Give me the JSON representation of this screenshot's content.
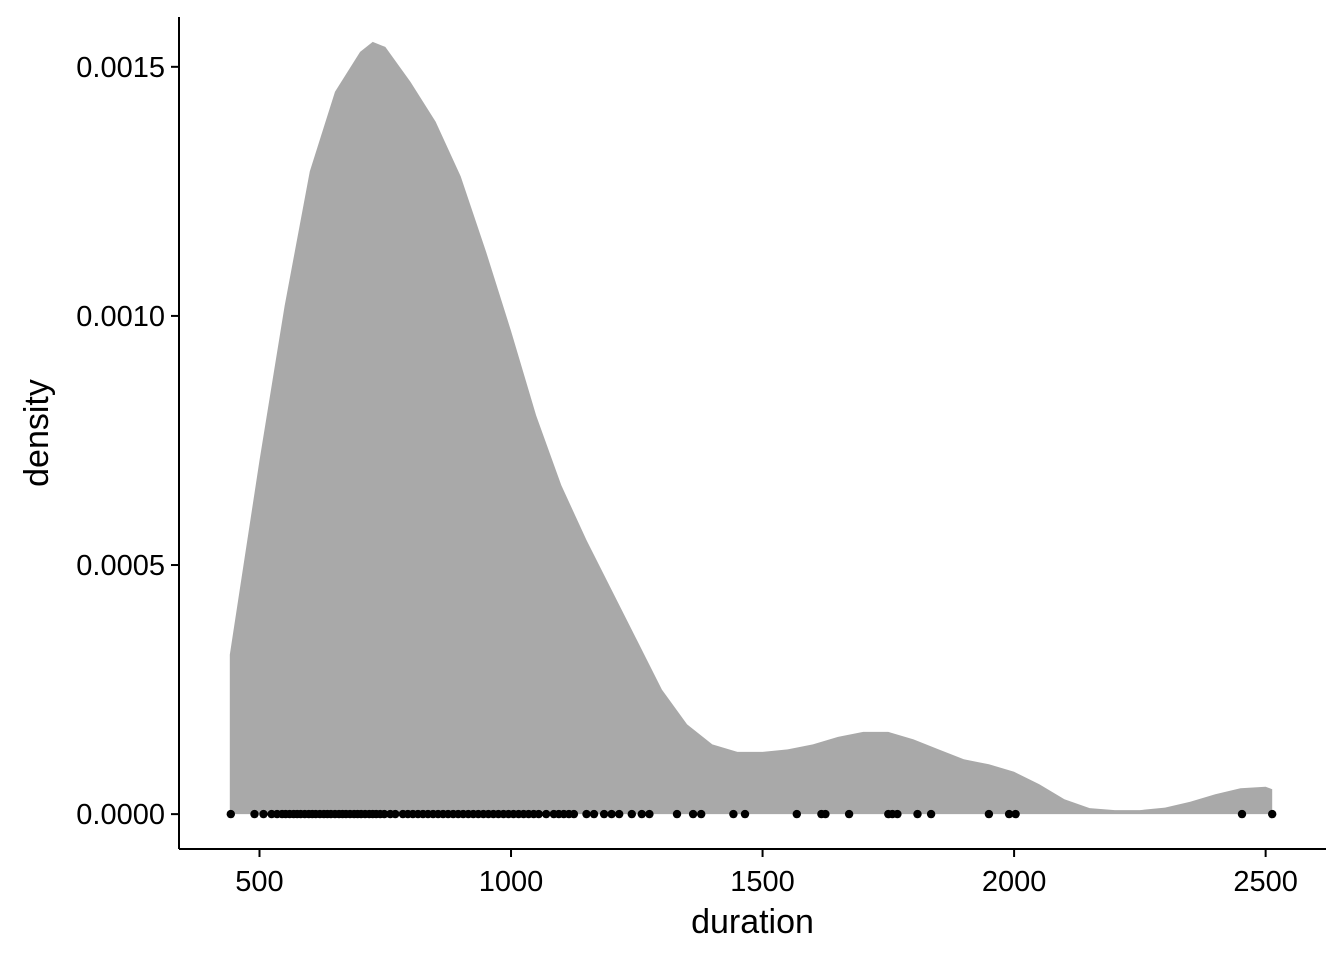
{
  "chart_data": {
    "type": "area",
    "title": "",
    "xlabel": "duration",
    "ylabel": "density",
    "xlim": [
      340,
      2620
    ],
    "ylim": [
      -7e-05,
      0.0016
    ],
    "xticks": [
      {
        "value": 500,
        "label": "500"
      },
      {
        "value": 1000,
        "label": "1000"
      },
      {
        "value": 1500,
        "label": "1500"
      },
      {
        "value": 2000,
        "label": "2000"
      },
      {
        "value": 2500,
        "label": "2500"
      }
    ],
    "yticks": [
      {
        "value": 0.0,
        "label": "0.0000"
      },
      {
        "value": 0.0005,
        "label": "0.0005"
      },
      {
        "value": 0.001,
        "label": "0.0010"
      },
      {
        "value": 0.0015,
        "label": "0.0015"
      }
    ],
    "grid": false,
    "legend": "none",
    "colors": {
      "fill": "#a9a9a9",
      "points": "#000000",
      "axis": "#000000"
    },
    "series": [
      {
        "kind": "density",
        "x": [
          441,
          500,
          550,
          600,
          650,
          700,
          725,
          750,
          800,
          850,
          900,
          950,
          1000,
          1050,
          1100,
          1150,
          1200,
          1250,
          1300,
          1350,
          1400,
          1450,
          1500,
          1550,
          1600,
          1650,
          1700,
          1750,
          1800,
          1850,
          1900,
          1950,
          2000,
          2050,
          2100,
          2150,
          2200,
          2250,
          2300,
          2350,
          2400,
          2450,
          2500,
          2513
        ],
        "y": [
          0.00032,
          0.00071,
          0.00102,
          0.00129,
          0.00145,
          0.00153,
          0.00155,
          0.00154,
          0.00147,
          0.00139,
          0.00128,
          0.00113,
          0.00097,
          0.0008,
          0.00066,
          0.00055,
          0.00045,
          0.00035,
          0.00025,
          0.00018,
          0.00014,
          0.000125,
          0.000125,
          0.00013,
          0.00014,
          0.000155,
          0.000165,
          0.000165,
          0.00015,
          0.00013,
          0.00011,
          0.0001,
          8.5e-05,
          6e-05,
          3e-05,
          1.2e-05,
          8e-06,
          8e-06,
          1.3e-05,
          2.5e-05,
          4e-05,
          5.2e-05,
          5.5e-05,
          5e-05
        ]
      },
      {
        "kind": "rug",
        "x": [
          443,
          490,
          508,
          524,
          535,
          545,
          552,
          560,
          568,
          575,
          582,
          590,
          598,
          605,
          612,
          620,
          628,
          635,
          642,
          650,
          658,
          665,
          672,
          680,
          688,
          695,
          702,
          710,
          718,
          725,
          732,
          740,
          748,
          760,
          770,
          785,
          795,
          805,
          815,
          825,
          835,
          845,
          855,
          865,
          875,
          885,
          895,
          905,
          915,
          925,
          935,
          945,
          955,
          965,
          975,
          985,
          995,
          1005,
          1015,
          1025,
          1035,
          1045,
          1055,
          1070,
          1085,
          1095,
          1105,
          1115,
          1125,
          1150,
          1165,
          1185,
          1200,
          1215,
          1240,
          1260,
          1275,
          1330,
          1362,
          1378,
          1442,
          1465,
          1568,
          1617,
          1625,
          1672,
          1750,
          1758,
          1768,
          1808,
          1835,
          1950,
          1990,
          2003,
          2453,
          2513
        ],
        "y_value": 0.0
      }
    ]
  }
}
